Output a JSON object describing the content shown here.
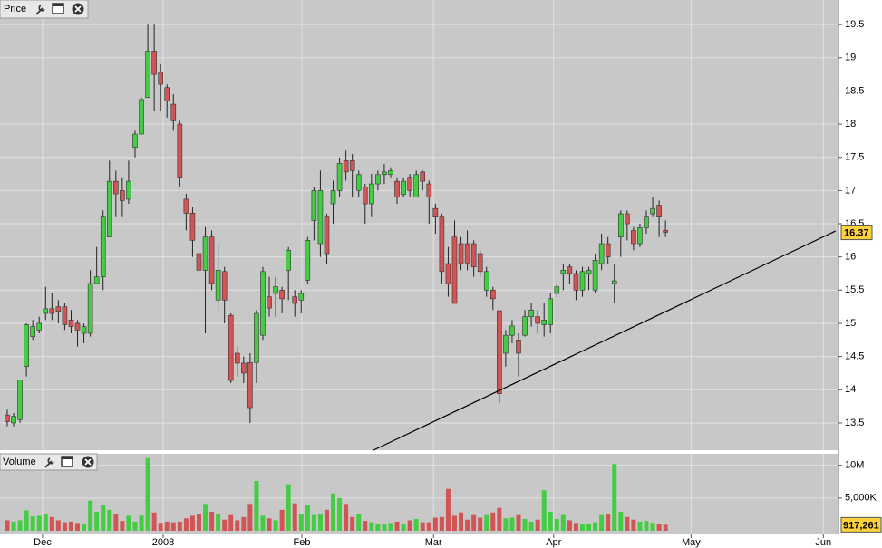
{
  "chart_data": [
    {
      "type": "candlestick",
      "title": "Price",
      "open": [
        13.62,
        13.5,
        13.55,
        14.35,
        14.8,
        14.9,
        15.15,
        15.22,
        15.25,
        15.25,
        15.05,
        15.0,
        14.85,
        14.85,
        15.6,
        15.7,
        16.3,
        17.14,
        17.0,
        16.87,
        17.65,
        17.85,
        18.4,
        19.1,
        18.78,
        18.55,
        18.3,
        18.0,
        16.87,
        16.66,
        16.05,
        15.8,
        16.3,
        15.35,
        15.78,
        15.12,
        14.55,
        14.4,
        14.41,
        14.41,
        14.82,
        15.4,
        15.45,
        15.5,
        15.8,
        15.4,
        15.35,
        15.65,
        16.55,
        16.2,
        16.6,
        16.8,
        17.0,
        17.45,
        17.45,
        17.0,
        17.05,
        16.8,
        17.1,
        17.24,
        17.24,
        17.14,
        16.94,
        17.2,
        16.9,
        17.28,
        17.1,
        16.73,
        16.6,
        15.9,
        16.3,
        16.2,
        16.2,
        16.2,
        16.05,
        15.5,
        15.5,
        15.19,
        14.55,
        14.82,
        14.75,
        14.82,
        15.1,
        15.1,
        14.98,
        14.98,
        15.45,
        15.75,
        15.85,
        15.75,
        15.5,
        15.75,
        15.5,
        15.9,
        16.2,
        15.6,
        16.3,
        16.65,
        16.4,
        16.2,
        16.44,
        16.65,
        16.78,
        16.4
      ],
      "high": [
        13.7,
        13.65,
        14.15,
        15.0,
        15.05,
        15.1,
        15.55,
        15.45,
        15.35,
        15.3,
        15.2,
        15.05,
        15.0,
        15.8,
        16.15,
        16.7,
        17.45,
        17.3,
        17.2,
        17.45,
        17.9,
        18.4,
        19.5,
        19.5,
        18.9,
        18.6,
        18.45,
        18.05,
        16.95,
        16.75,
        16.1,
        16.45,
        16.4,
        16.2,
        15.85,
        15.15,
        14.65,
        14.5,
        14.55,
        15.2,
        15.85,
        15.7,
        15.7,
        15.55,
        16.15,
        15.5,
        15.5,
        16.3,
        17.05,
        17.3,
        16.65,
        17.15,
        17.5,
        17.6,
        17.55,
        17.3,
        17.1,
        17.25,
        17.3,
        17.4,
        17.35,
        17.2,
        17.2,
        17.25,
        17.3,
        17.3,
        17.15,
        16.8,
        16.65,
        16.15,
        16.55,
        16.3,
        16.4,
        16.25,
        16.1,
        15.85,
        15.55,
        15.2,
        14.9,
        15.05,
        14.85,
        15.2,
        15.3,
        15.2,
        15.3,
        15.45,
        15.6,
        15.9,
        15.9,
        15.8,
        15.85,
        15.85,
        16.05,
        16.35,
        16.3,
        15.9,
        16.7,
        16.7,
        16.45,
        16.5,
        16.7,
        16.9,
        16.85,
        16.55
      ],
      "low": [
        13.45,
        13.45,
        13.5,
        14.2,
        14.75,
        14.85,
        15.05,
        15.05,
        15.0,
        14.9,
        14.85,
        14.65,
        14.7,
        14.8,
        15.6,
        15.5,
        16.3,
        16.6,
        16.6,
        16.8,
        17.5,
        17.85,
        18.4,
        18.2,
        18.2,
        18.1,
        17.9,
        17.05,
        16.4,
        16.0,
        15.4,
        14.85,
        15.5,
        15.2,
        15.0,
        14.1,
        14.2,
        14.1,
        13.5,
        14.1,
        14.75,
        15.1,
        15.1,
        15.15,
        15.35,
        15.1,
        15.15,
        15.6,
        16.25,
        16.0,
        15.9,
        16.5,
        16.9,
        17.15,
        16.9,
        16.9,
        16.5,
        16.6,
        17.0,
        17.1,
        17.2,
        16.8,
        16.9,
        16.9,
        16.9,
        17.0,
        16.5,
        16.35,
        15.6,
        15.4,
        15.3,
        15.8,
        15.8,
        15.7,
        15.7,
        15.4,
        15.2,
        13.8,
        14.35,
        14.7,
        14.2,
        14.8,
        14.95,
        14.85,
        14.8,
        14.85,
        15.4,
        15.5,
        15.6,
        15.35,
        15.4,
        15.5,
        15.45,
        15.8,
        15.9,
        15.3,
        16.0,
        16.25,
        16.1,
        16.15,
        16.35,
        16.6,
        16.3,
        16.3
      ],
      "close": [
        13.52,
        13.6,
        14.15,
        14.98,
        14.95,
        15.0,
        15.22,
        15.15,
        15.18,
        14.98,
        14.95,
        14.9,
        14.95,
        15.6,
        15.7,
        16.6,
        17.14,
        16.95,
        16.85,
        17.14,
        17.85,
        18.37,
        19.1,
        18.75,
        18.6,
        18.35,
        18.05,
        17.2,
        16.66,
        16.25,
        15.8,
        16.3,
        15.6,
        15.8,
        15.35,
        14.14,
        14.4,
        14.25,
        13.73,
        15.15,
        15.78,
        15.23,
        15.55,
        15.37,
        16.1,
        15.3,
        15.45,
        16.25,
        17.0,
        17.0,
        16.05,
        17.0,
        17.41,
        17.28,
        17.3,
        17.24,
        16.8,
        17.1,
        17.24,
        17.28,
        17.3,
        16.9,
        17.14,
        17.0,
        17.24,
        17.14,
        16.9,
        16.6,
        15.78,
        15.6,
        15.3,
        15.9,
        15.91,
        15.85,
        15.78,
        15.78,
        15.37,
        13.94,
        14.82,
        14.96,
        14.55,
        15.1,
        15.2,
        15.0,
        15.05,
        15.37,
        15.55,
        15.8,
        15.75,
        15.5,
        15.78,
        15.8,
        15.95,
        16.2,
        16.0,
        15.64,
        16.65,
        16.5,
        16.2,
        16.44,
        16.6,
        16.73,
        16.6,
        16.37
      ],
      "up_color": "#44cc44",
      "down_color": "#d25555",
      "ylim": [
        13.09,
        19.87
      ],
      "yticks": [
        13.5,
        14,
        14.5,
        15,
        15.5,
        16,
        16.5,
        17,
        17.5,
        18,
        18.5,
        19,
        19.5
      ],
      "last_price": 16.37,
      "trendline_x": [
        57.3,
        129.6
      ],
      "trendline_y": [
        13.09,
        16.39
      ],
      "grid": true
    },
    {
      "type": "bar",
      "title": "Volume",
      "values": [
        1600000,
        1400000,
        1600000,
        3100000,
        2200000,
        2300000,
        2600000,
        2100000,
        1600000,
        1300000,
        1400000,
        1200000,
        1100000,
        4600000,
        2900000,
        3900000,
        3200000,
        2500000,
        1500000,
        2300000,
        1400000,
        2300000,
        11100000,
        2800000,
        1200000,
        1400000,
        1300000,
        1400000,
        1900000,
        2300000,
        2600000,
        4100000,
        2900000,
        2600000,
        1700000,
        2400000,
        1600000,
        2100000,
        4100000,
        7600000,
        2300000,
        1900000,
        1600000,
        3200000,
        7100000,
        4200000,
        2500000,
        3900000,
        2400000,
        2600000,
        3200000,
        5700000,
        5000000,
        4100000,
        2100000,
        2500000,
        1500000,
        1300000,
        1100000,
        1000000,
        1200000,
        1400000,
        1100000,
        1600000,
        1800000,
        1300000,
        1300000,
        2000000,
        2100000,
        6400000,
        2300000,
        2800000,
        1700000,
        2400000,
        2000000,
        2400000,
        2800000,
        3500000,
        1900000,
        2000000,
        2400000,
        1800000,
        1400000,
        1700000,
        6200000,
        2900000,
        1800000,
        2400000,
        1600000,
        1200000,
        1100000,
        1000000,
        1300000,
        2400000,
        2600000,
        10200000,
        2900000,
        2100000,
        1700000,
        1400000,
        1500000,
        1200000,
        1100000,
        917261
      ],
      "last_value_label": "917,261",
      "ylim": [
        0,
        11200000
      ],
      "yticks": [
        {
          "value": 5000000,
          "label": "5,000K"
        },
        {
          "value": 10000000,
          "label": "10M"
        }
      ],
      "xlim": [
        -1.13,
        130.07
      ],
      "xticks": [
        {
          "value": 5.53,
          "label": "Dec"
        },
        {
          "value": 24.4,
          "label": "2008"
        },
        {
          "value": 46.1,
          "label": "Feb"
        },
        {
          "value": 66.7,
          "label": "Mar"
        },
        {
          "value": 85.5,
          "label": "Apr"
        },
        {
          "value": 107.0,
          "label": "May"
        },
        {
          "value": 127.7,
          "label": "Jun"
        }
      ],
      "grid": true
    }
  ]
}
